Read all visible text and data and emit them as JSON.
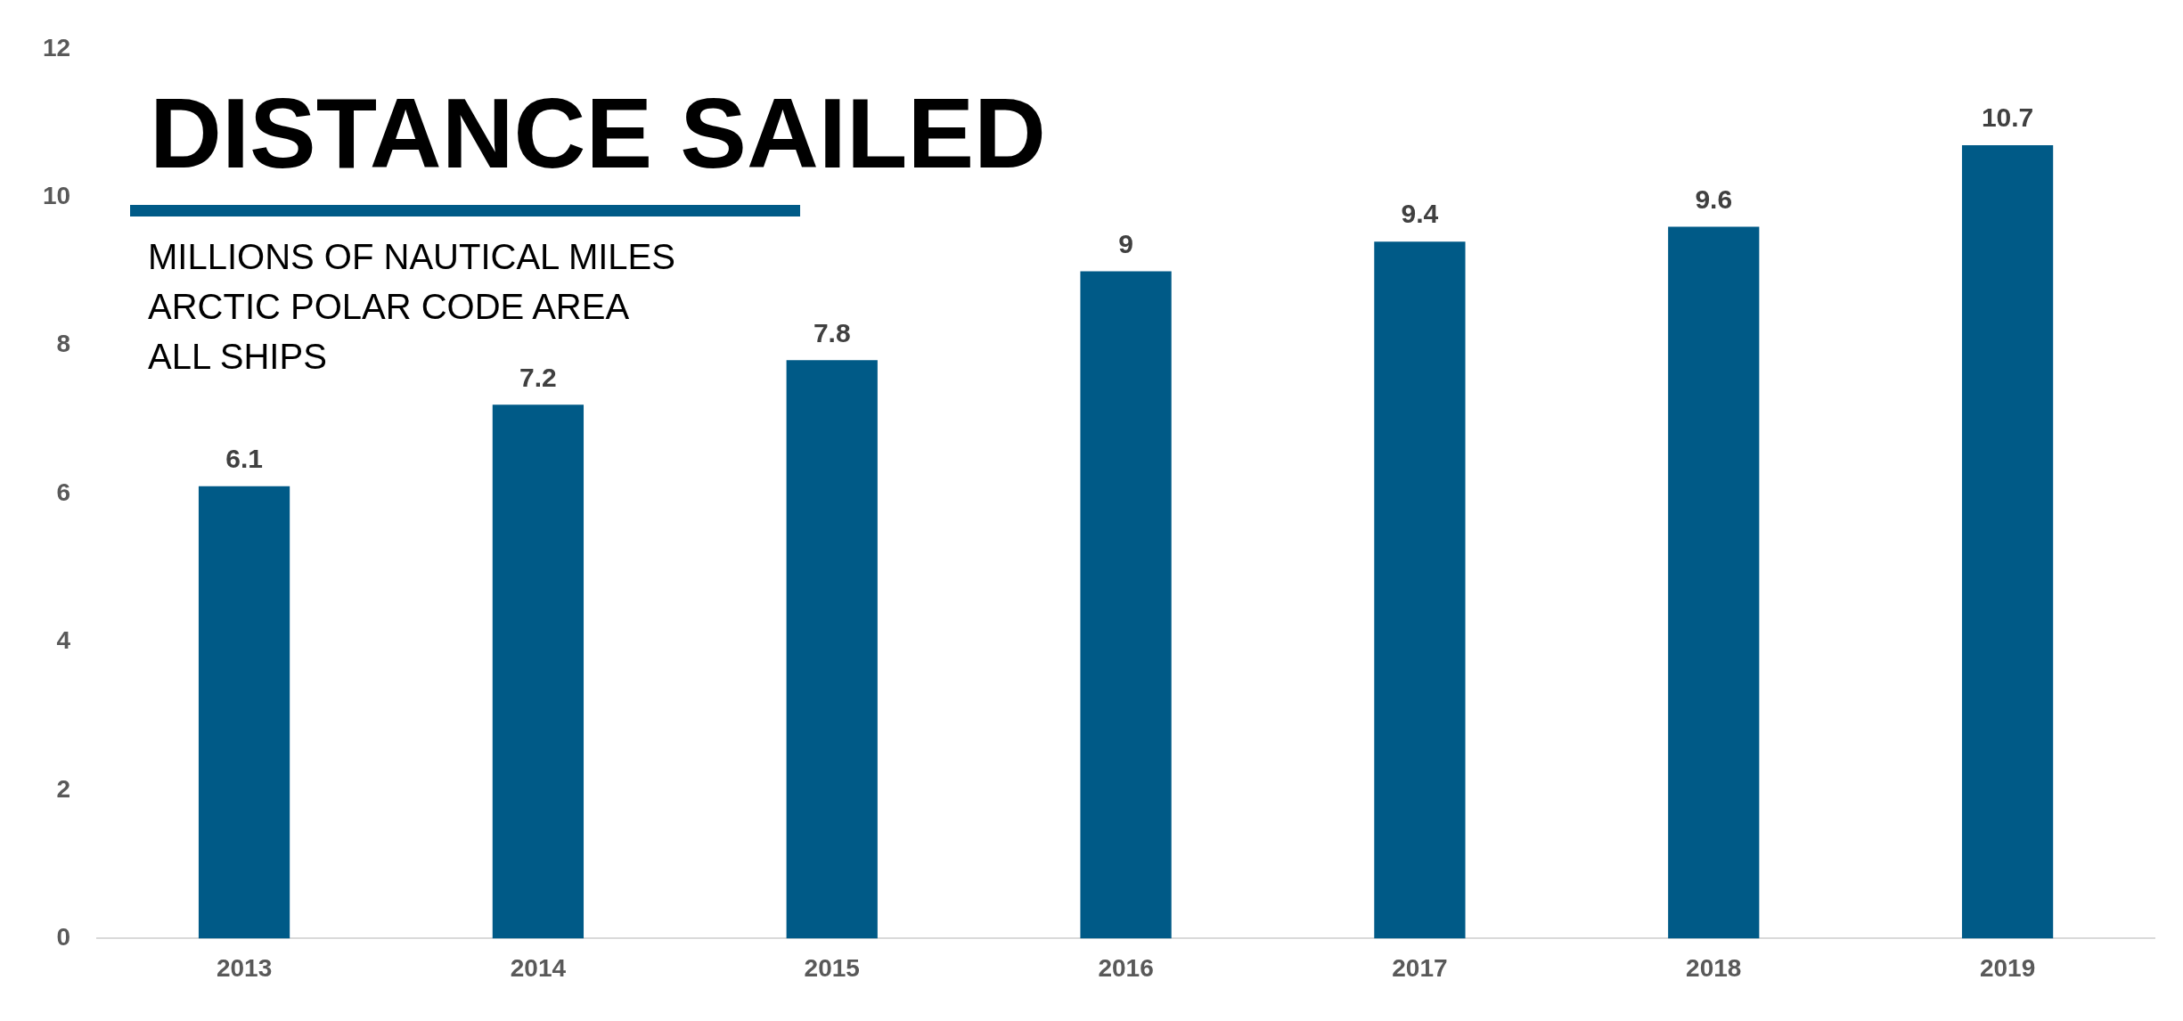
{
  "chart_data": {
    "type": "bar",
    "title": "DISTANCE SAILED",
    "subtitle": "MILLIONS OF NAUTICAL MILES\nARCTIC POLAR CODE AREA\nALL SHIPS",
    "categories": [
      "2013",
      "2014",
      "2015",
      "2016",
      "2017",
      "2018",
      "2019"
    ],
    "values": [
      6.1,
      7.2,
      7.8,
      9,
      9.4,
      9.6,
      10.7
    ],
    "color": "#005a87",
    "ylim": [
      0,
      12
    ],
    "yticks": [
      0,
      2,
      4,
      6,
      8,
      10,
      12
    ],
    "grid": false,
    "legend": false,
    "data_labels": true
  }
}
